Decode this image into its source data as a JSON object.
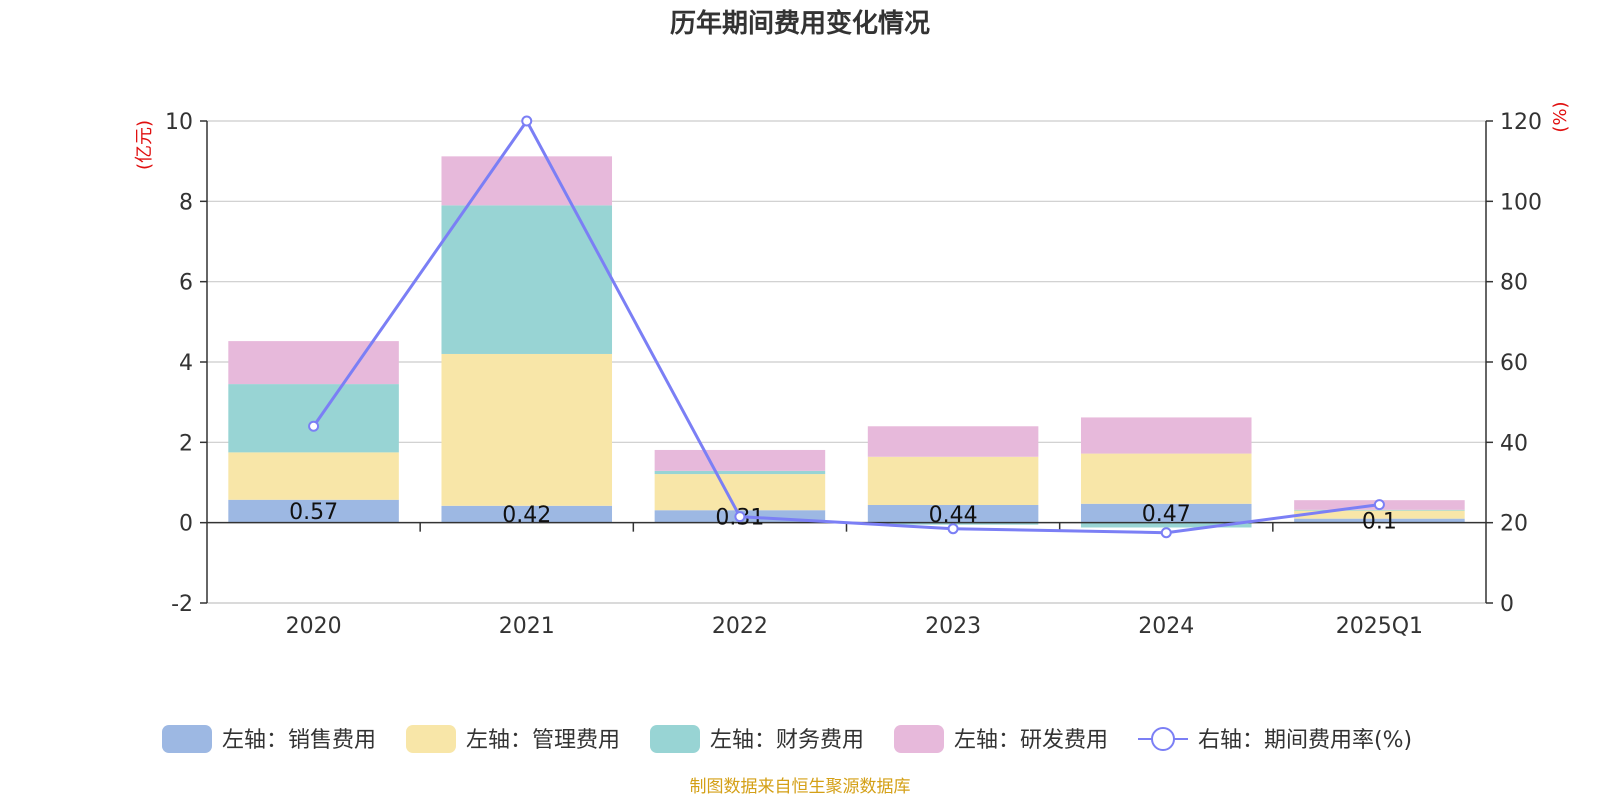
{
  "chart_data": {
    "type": "bar",
    "title": "历年期间费用变化情况",
    "categories": [
      "2020",
      "2021",
      "2022",
      "2023",
      "2024",
      "2025Q1"
    ],
    "left_axis": {
      "unit": "(亿元)",
      "ylim": [
        -2,
        10
      ],
      "ticks": [
        -2,
        0,
        2,
        4,
        6,
        8,
        10
      ]
    },
    "right_axis": {
      "unit": "(%)",
      "ylim": [
        0,
        120
      ],
      "ticks": [
        0,
        20,
        40,
        60,
        80,
        100,
        120
      ]
    },
    "series": [
      {
        "name": "左轴：销售费用",
        "axis": "left",
        "type": "bar",
        "color": "#9db8e3",
        "values": [
          0.57,
          0.42,
          0.31,
          0.44,
          0.47,
          0.1
        ],
        "data_labels": [
          "0.57",
          "0.42",
          "0.31",
          "0.44",
          "0.47",
          "0.1"
        ]
      },
      {
        "name": "左轴：管理费用",
        "axis": "left",
        "type": "bar",
        "color": "#f8e6a8",
        "values": [
          1.18,
          3.78,
          0.9,
          1.2,
          1.25,
          0.2
        ]
      },
      {
        "name": "左轴：财务费用",
        "axis": "left",
        "type": "bar",
        "color": "#98d4d4",
        "values": [
          1.7,
          3.7,
          0.08,
          -0.05,
          -0.12,
          0.02
        ]
      },
      {
        "name": "左轴：研发费用",
        "axis": "left",
        "type": "bar",
        "color": "#e7b9db",
        "values": [
          1.07,
          1.22,
          0.52,
          0.76,
          0.9,
          0.24
        ]
      },
      {
        "name": "右轴：期间费用率(%)",
        "axis": "right",
        "type": "line",
        "color": "#7b7ff5",
        "values": [
          44,
          120,
          21.5,
          18.5,
          17.5,
          24.5
        ]
      }
    ],
    "grid": true,
    "legend_position": "bottom"
  },
  "source_text": "制图数据来自恒生聚源数据库"
}
